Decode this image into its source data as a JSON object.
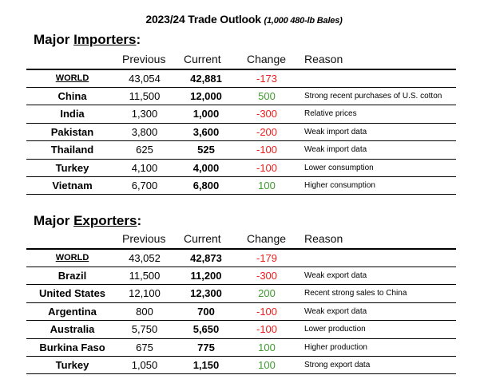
{
  "title": {
    "main": "2023/24 Trade Outlook",
    "sub": "(1,000 480-lb Bales)"
  },
  "columns": {
    "previous": "Previous",
    "current": "Current",
    "change": "Change",
    "reason": "Reason"
  },
  "importers": {
    "heading_prefix": "Major ",
    "heading_word": "Importers",
    "heading_suffix": ":",
    "rows": [
      {
        "country": "WORLD",
        "previous": "43,054",
        "current": "42,881",
        "change": "-173",
        "reason": ""
      },
      {
        "country": "China",
        "previous": "11,500",
        "current": "12,000",
        "change": "500",
        "reason": "Strong recent purchases of U.S. cotton"
      },
      {
        "country": "India",
        "previous": "1,300",
        "current": "1,000",
        "change": "-300",
        "reason": "Relative prices"
      },
      {
        "country": "Pakistan",
        "previous": "3,800",
        "current": "3,600",
        "change": "-200",
        "reason": "Weak import data"
      },
      {
        "country": "Thailand",
        "previous": "625",
        "current": "525",
        "change": "-100",
        "reason": "Weak import data"
      },
      {
        "country": "Turkey",
        "previous": "4,100",
        "current": "4,000",
        "change": "-100",
        "reason": "Lower consumption"
      },
      {
        "country": "Vietnam",
        "previous": "6,700",
        "current": "6,800",
        "change": "100",
        "reason": "Higher consumption"
      }
    ]
  },
  "exporters": {
    "heading_prefix": "Major ",
    "heading_word": "Exporters",
    "heading_suffix": ":",
    "rows": [
      {
        "country": "WORLD",
        "previous": "43,052",
        "current": "42,873",
        "change": "-179",
        "reason": ""
      },
      {
        "country": "Brazil",
        "previous": "11,500",
        "current": "11,200",
        "change": "-300",
        "reason": "Weak export data"
      },
      {
        "country": "United States",
        "previous": "12,100",
        "current": "12,300",
        "change": "200",
        "reason": "Recent strong sales to China"
      },
      {
        "country": "Argentina",
        "previous": "800",
        "current": "700",
        "change": "-100",
        "reason": "Weak export data"
      },
      {
        "country": "Australia",
        "previous": "5,750",
        "current": "5,650",
        "change": "-100",
        "reason": "Lower production"
      },
      {
        "country": "Burkina Faso",
        "previous": "675",
        "current": "775",
        "change": "100",
        "reason": "Higher production"
      },
      {
        "country": "Turkey",
        "previous": "1,050",
        "current": "1,150",
        "change": "100",
        "reason": "Strong export data"
      }
    ]
  }
}
